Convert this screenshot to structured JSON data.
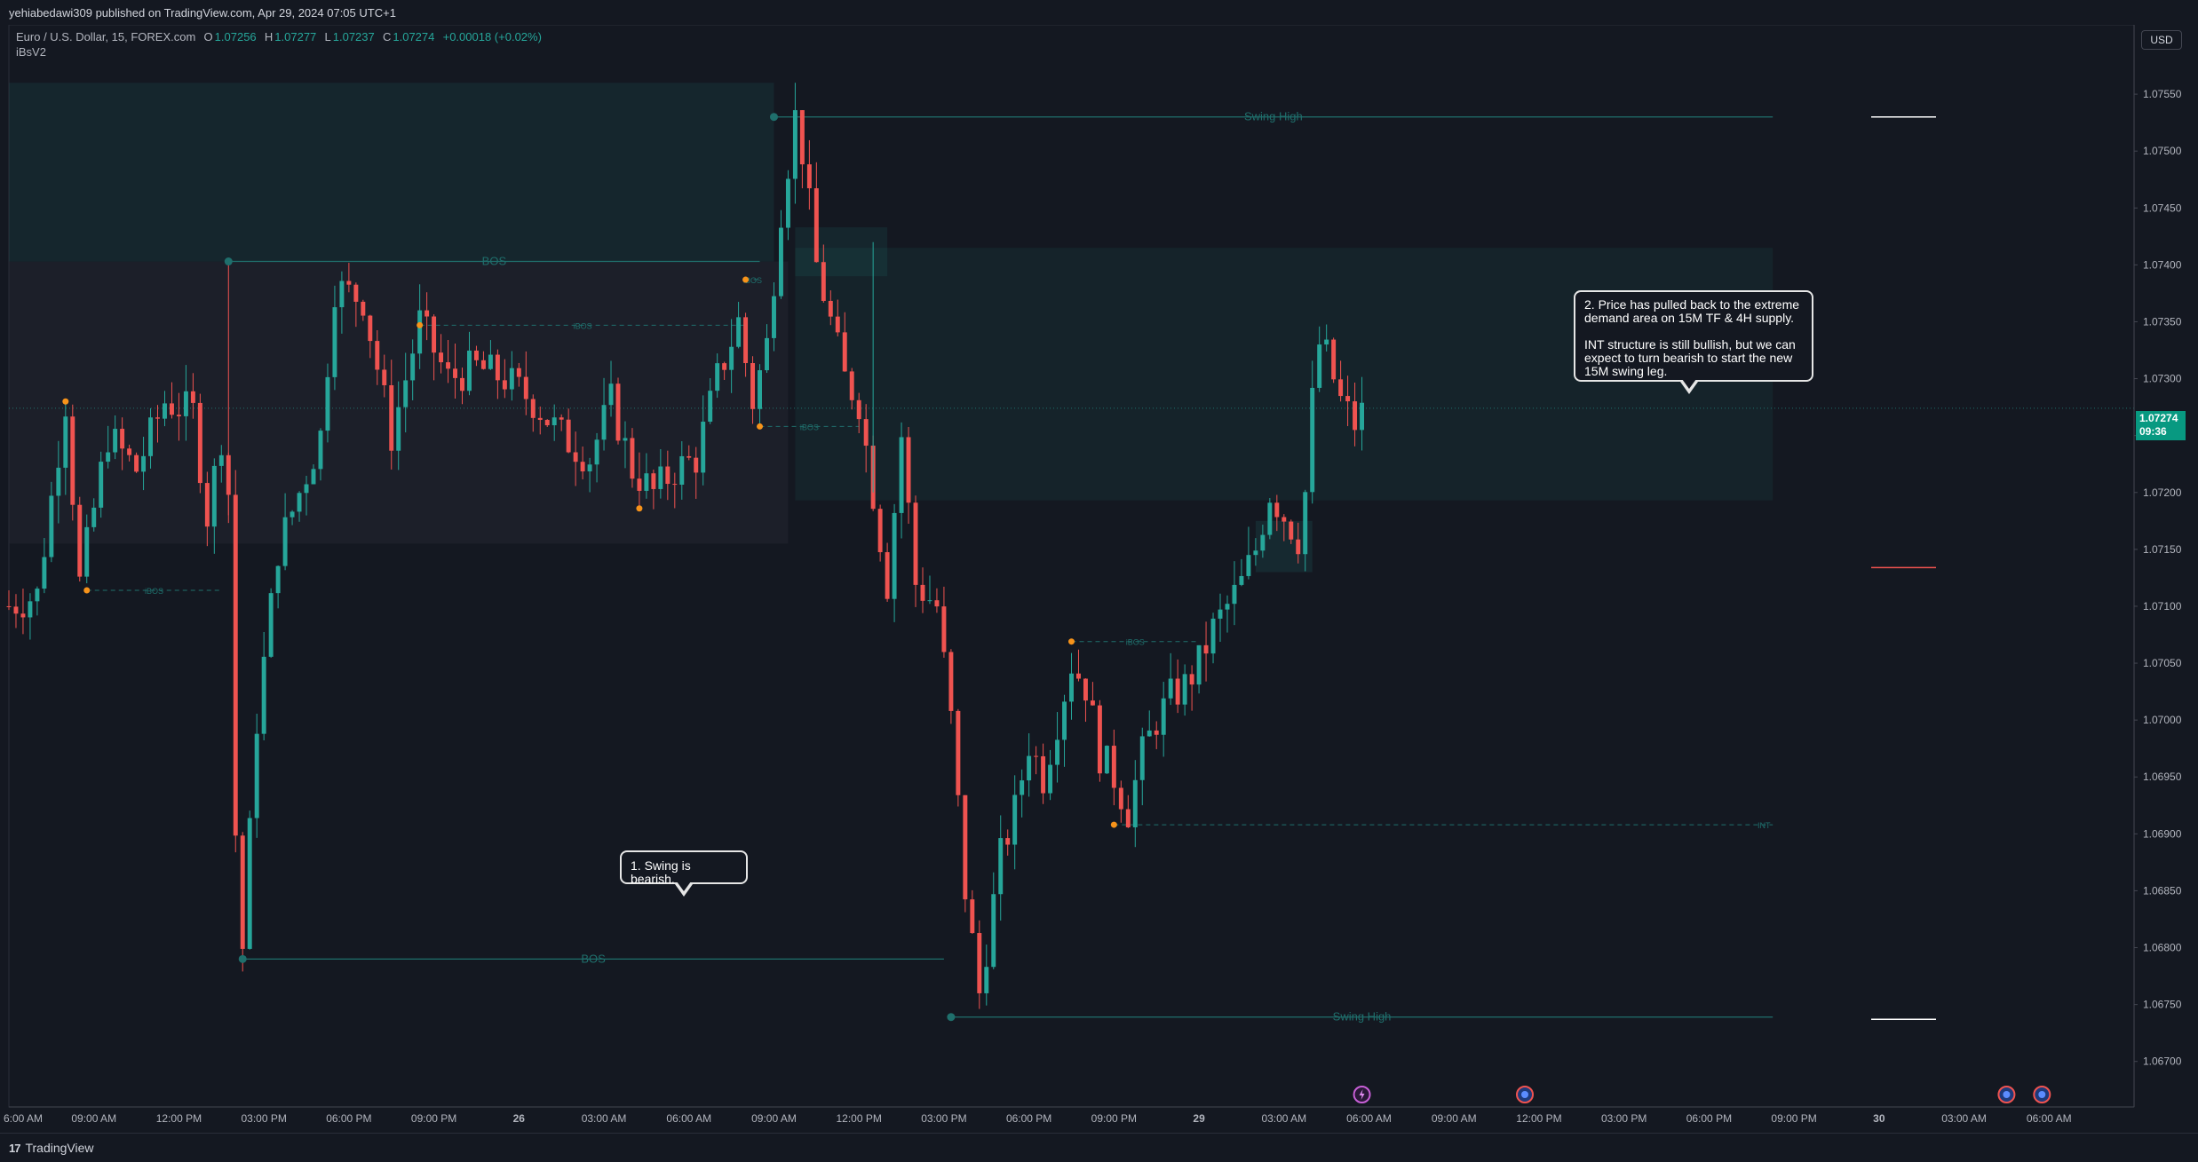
{
  "header": {
    "publisher": "yehiabedawi309 published on TradingView.com, Apr 29, 2024 07:05 UTC+1"
  },
  "legend": {
    "symbol": "Euro / U.S. Dollar, 15, FOREX.com",
    "o_label": "O",
    "o_value": "1.07256",
    "h_label": "H",
    "h_value": "1.07277",
    "l_label": "L",
    "l_value": "1.07237",
    "c_label": "C",
    "c_value": "1.07274",
    "change": "+0.00018 (+0.02%)",
    "indicator": "iBsV2"
  },
  "currency": "USD",
  "last_price": {
    "value": "1.07274",
    "countdown": "09:36"
  },
  "annotations": {
    "callout_1": "1. Swing is bearish.",
    "callout_2": "2. Price has pulled back to the extreme demand area on 15M TF & 4H supply.\n\nINT structure is still bullish, but we can expect to turn bearish to start the new 15M swing leg."
  },
  "footer": {
    "brand": "TradingView",
    "logo_text": "17"
  },
  "colors": {
    "up": "#26a69a",
    "down": "#ef5350",
    "background": "#141821",
    "structure": "#1f6f6c",
    "swing_point": "#f7931a",
    "grid": "#1c2030"
  },
  "chart_data": {
    "type": "candlestick",
    "symbol": "EURUSD",
    "timeframe": "15",
    "ylim": [
      1.0666,
      1.076
    ],
    "y_ticks": [
      "1.07550",
      "1.07500",
      "1.07450",
      "1.07400",
      "1.07350",
      "1.07300",
      "1.07250",
      "1.07200",
      "1.07150",
      "1.07100",
      "1.07050",
      "1.07000",
      "1.06950",
      "1.06900",
      "1.06850",
      "1.06800",
      "1.06750",
      "1.06700"
    ],
    "x_ticks": [
      "6:00 AM",
      "09:00 AM",
      "12:00 PM",
      "03:00 PM",
      "06:00 PM",
      "09:00 PM",
      "26",
      "03:00 AM",
      "06:00 AM",
      "09:00 AM",
      "12:00 PM",
      "03:00 PM",
      "06:00 PM",
      "09:00 PM",
      "29",
      "03:00 AM",
      "06:00 AM",
      "09:00 AM",
      "12:00 PM",
      "03:00 PM",
      "06:00 PM",
      "09:00 PM",
      "30",
      "03:00 AM",
      "06:00 AM"
    ],
    "x_tick_index": [
      0,
      12,
      24,
      36,
      48,
      60,
      72,
      84,
      96,
      108,
      120,
      132,
      144,
      156,
      168,
      180,
      192,
      204,
      216,
      228,
      240,
      252,
      264,
      276,
      288
    ],
    "index_range": [
      0,
      300
    ],
    "price_path": [
      [
        0,
        1.071
      ],
      [
        4,
        1.0711
      ],
      [
        8,
        1.0728
      ],
      [
        10,
        1.0712
      ],
      [
        14,
        1.0725
      ],
      [
        18,
        1.0722
      ],
      [
        22,
        1.0728
      ],
      [
        26,
        1.0727
      ],
      [
        28,
        1.0718
      ],
      [
        30,
        1.0725
      ],
      [
        31,
        1.072
      ],
      [
        32,
        1.069
      ],
      [
        33,
        1.068
      ],
      [
        35,
        1.07
      ],
      [
        38,
        1.0715
      ],
      [
        41,
        1.072
      ],
      [
        44,
        1.0725
      ],
      [
        46,
        1.0738
      ],
      [
        50,
        1.0737
      ],
      [
        54,
        1.0725
      ],
      [
        58,
        1.0735
      ],
      [
        62,
        1.073
      ],
      [
        66,
        1.0731
      ],
      [
        70,
        1.073
      ],
      [
        74,
        1.0728
      ],
      [
        78,
        1.0725
      ],
      [
        82,
        1.0723
      ],
      [
        85,
        1.0728
      ],
      [
        88,
        1.0722
      ],
      [
        91,
        1.072
      ],
      [
        94,
        1.0722
      ],
      [
        97,
        1.0723
      ],
      [
        100,
        1.073
      ],
      [
        103,
        1.0735
      ],
      [
        105,
        1.0728
      ],
      [
        107,
        1.0733
      ],
      [
        109,
        1.0745
      ],
      [
        111,
        1.0753
      ],
      [
        112,
        1.075
      ],
      [
        114,
        1.074
      ],
      [
        116,
        1.0735
      ],
      [
        118,
        1.073
      ],
      [
        120,
        1.0728
      ],
      [
        122,
        1.072
      ],
      [
        124,
        1.0712
      ],
      [
        126,
        1.0725
      ],
      [
        128,
        1.0712
      ],
      [
        131,
        1.071
      ],
      [
        133,
        1.07
      ],
      [
        135,
        1.0685
      ],
      [
        137,
        1.0676
      ],
      [
        138,
        1.068
      ],
      [
        140,
        1.0688
      ],
      [
        142,
        1.0692
      ],
      [
        144,
        1.0698
      ],
      [
        146,
        1.0695
      ],
      [
        148,
        1.07
      ],
      [
        150,
        1.0705
      ],
      [
        152,
        1.0703
      ],
      [
        154,
        1.0697
      ],
      [
        156,
        1.0695
      ],
      [
        158,
        1.0692
      ],
      [
        160,
        1.0697
      ],
      [
        162,
        1.07
      ],
      [
        164,
        1.0702
      ],
      [
        166,
        1.0703
      ],
      [
        168,
        1.0705
      ],
      [
        170,
        1.0708
      ],
      [
        172,
        1.071
      ],
      [
        174,
        1.0712
      ],
      [
        176,
        1.0715
      ],
      [
        178,
        1.072
      ],
      [
        180,
        1.0718
      ],
      [
        182,
        1.0716
      ],
      [
        183,
        1.072
      ],
      [
        184,
        1.0728
      ],
      [
        185,
        1.0733
      ],
      [
        186,
        1.0732
      ],
      [
        188,
        1.0728
      ],
      [
        190,
        1.0726
      ],
      [
        191,
        1.0727
      ]
    ],
    "swing_points": [
      {
        "i": 8,
        "price": 1.0728
      },
      {
        "i": 11,
        "price": 1.07114
      },
      {
        "i": 58,
        "price": 1.07347
      },
      {
        "i": 89,
        "price": 1.07186
      },
      {
        "i": 104,
        "price": 1.07387
      },
      {
        "i": 106,
        "price": 1.07258
      },
      {
        "i": 150,
        "price": 1.07069
      },
      {
        "i": 156,
        "price": 1.06908
      }
    ],
    "structure_levels": [
      {
        "label": "BOS",
        "price": 1.07403,
        "from": 31,
        "to": 106,
        "style": "solid",
        "anchor": "circle"
      },
      {
        "label": "BOS",
        "price": 1.0679,
        "from": 33,
        "to": 132,
        "style": "solid",
        "anchor": "circle"
      },
      {
        "label": "Swing High",
        "price": 1.0753,
        "from": 108,
        "to": 249,
        "style": "solid",
        "anchor": "circle"
      },
      {
        "label": "Swing High",
        "price": 1.06739,
        "from": 133,
        "to": 249,
        "style": "solid",
        "anchor": "circle"
      },
      {
        "label": "iBOS",
        "price": 1.07114,
        "from": 11,
        "to": 30,
        "style": "dashed",
        "anchor": "none"
      },
      {
        "label": "iBOS",
        "price": 1.07347,
        "from": 58,
        "to": 104,
        "style": "dashed",
        "anchor": "none"
      },
      {
        "label": "iBOS",
        "price": 1.07387,
        "from": 104,
        "to": 106,
        "style": "dashed",
        "anchor": "none"
      },
      {
        "label": "iBOS",
        "price": 1.07258,
        "from": 106,
        "to": 120,
        "style": "dashed",
        "anchor": "none"
      },
      {
        "label": "iBOS",
        "price": 1.07069,
        "from": 150,
        "to": 168,
        "style": "dashed",
        "anchor": "none"
      },
      {
        "label": "INT",
        "price": 1.06908,
        "from": 156,
        "to": 249,
        "style": "dashed",
        "anchor": "none"
      }
    ],
    "zones": [
      {
        "from": 0,
        "to": 108,
        "top": 1.0756,
        "bottom": 1.07403,
        "role": "supply"
      },
      {
        "from": 0,
        "to": 110,
        "top": 1.07403,
        "bottom": 1.07155,
        "role": "range"
      },
      {
        "from": 111,
        "to": 249,
        "top": 1.07415,
        "bottom": 1.07193,
        "role": "supply-4h"
      },
      {
        "from": 111,
        "to": 124,
        "top": 1.07433,
        "bottom": 1.0739,
        "role": "supply-15m"
      },
      {
        "from": 176,
        "to": 184,
        "top": 1.07175,
        "bottom": 1.0713,
        "role": "demand"
      }
    ],
    "ref_ticks": [
      {
        "price": 1.0753,
        "color": "#ffffff"
      },
      {
        "price": 1.07134,
        "color": "#ef5350"
      },
      {
        "price": 1.06737,
        "color": "#ffffff"
      }
    ],
    "event_markers": [
      {
        "i": 191,
        "kind": "bolt"
      },
      {
        "i": 214,
        "kind": "flag"
      },
      {
        "i": 282,
        "kind": "flag"
      },
      {
        "i": 287,
        "kind": "flag"
      }
    ]
  }
}
